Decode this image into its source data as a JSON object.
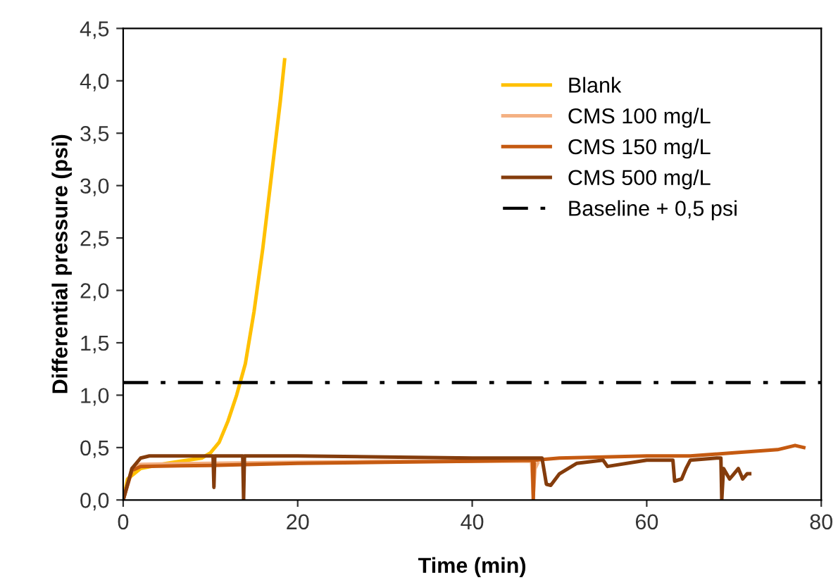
{
  "chart_data": {
    "type": "line",
    "xlabel": "Time (min)",
    "ylabel": "Differential pressure (psi)",
    "xlim": [
      0,
      80
    ],
    "xticks": [
      0,
      20,
      40,
      60,
      80
    ],
    "ylim": [
      0,
      4.5
    ],
    "yticks": [
      {
        "value": 0,
        "label": "0,0"
      },
      {
        "value": 0.5,
        "label": "0,5"
      },
      {
        "value": 1,
        "label": "1,0"
      },
      {
        "value": 1.5,
        "label": "1,5"
      },
      {
        "value": 2,
        "label": "2,0"
      },
      {
        "value": 2.5,
        "label": "2,5"
      },
      {
        "value": 3,
        "label": "3,0"
      },
      {
        "value": 3.5,
        "label": "3,5"
      },
      {
        "value": 4,
        "label": "4,0"
      },
      {
        "value": 4.5,
        "label": "4,5"
      }
    ],
    "grid": false,
    "legend": "top right",
    "marker": "none",
    "line_style": "solid",
    "series": [
      {
        "name": "Blank",
        "color": "#ffc000",
        "x": [
          0,
          0.5,
          2,
          5,
          9,
          10,
          11,
          12,
          13,
          14,
          15,
          16,
          17,
          18,
          18.5
        ],
        "values": [
          0,
          0.2,
          0.3,
          0.35,
          0.4,
          0.45,
          0.55,
          0.75,
          1.0,
          1.3,
          1.8,
          2.4,
          3.1,
          3.8,
          4.2
        ]
      },
      {
        "name": "CMS 100 mg/L",
        "color": "#f4b183",
        "x": [
          0,
          1,
          2,
          10,
          20,
          30,
          40,
          46.8,
          47,
          47.2,
          47.5
        ],
        "values": [
          0,
          0.3,
          0.34,
          0.35,
          0.36,
          0.37,
          0.37,
          0.37,
          0.05,
          0.3,
          0.35
        ]
      },
      {
        "name": "CMS 150 mg/L",
        "color": "#c55a11",
        "x": [
          0,
          1,
          2,
          10,
          20,
          30,
          40,
          46.9,
          47,
          47.1,
          50,
          60,
          65,
          70,
          75,
          77,
          78
        ],
        "values": [
          0,
          0.28,
          0.32,
          0.33,
          0.35,
          0.36,
          0.37,
          0.38,
          0,
          0.38,
          0.4,
          0.42,
          0.42,
          0.45,
          0.48,
          0.52,
          0.5
        ]
      },
      {
        "name": "CMS 500 mg/L",
        "color": "#843c0c",
        "x": [
          0,
          1,
          2,
          3,
          10.3,
          10.4,
          10.5,
          13.7,
          13.8,
          13.9,
          20,
          30,
          40,
          48,
          48.5,
          49,
          50,
          52,
          55,
          55.5,
          60,
          63,
          63.2,
          64,
          64.5,
          65,
          68,
          68.5,
          68.6,
          68.8,
          69.5,
          70,
          70.5,
          71,
          71.5,
          71.8
        ],
        "values": [
          0,
          0.3,
          0.4,
          0.42,
          0.42,
          0.12,
          0.42,
          0.42,
          0,
          0.42,
          0.42,
          0.41,
          0.4,
          0.4,
          0.15,
          0.14,
          0.25,
          0.35,
          0.38,
          0.32,
          0.38,
          0.38,
          0.18,
          0.2,
          0.3,
          0.38,
          0.4,
          0.4,
          0,
          0.3,
          0.2,
          0.25,
          0.3,
          0.2,
          0.25,
          0.25
        ]
      }
    ],
    "ref_lines": [
      {
        "axis": "y",
        "value": 1.12,
        "label": "Baseline + 0,5 psi",
        "color": "#000000",
        "line_style": "dashdot"
      }
    ]
  }
}
